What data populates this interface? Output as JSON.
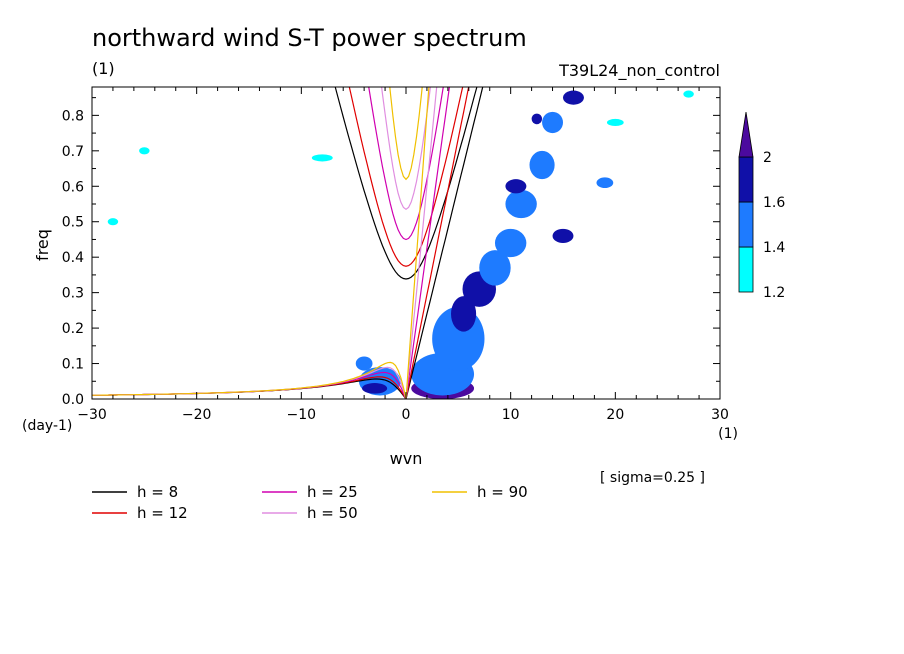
{
  "chart_data": {
    "type": "contour",
    "title": "northward wind S-T power spectrum",
    "units_label": "(1)",
    "run_label": "T39L24_non_control",
    "xlabel": "wvn",
    "ylabel": "freq",
    "x_unit": "(1)",
    "y_unit": "(day-1)",
    "xlim": [
      -30,
      30
    ],
    "ylim": [
      0,
      0.88
    ],
    "xticks": [
      -30,
      -20,
      -10,
      0,
      10,
      20,
      30
    ],
    "yticks": [
      0.0,
      0.1,
      0.2,
      0.3,
      0.4,
      0.5,
      0.6,
      0.7,
      0.8
    ],
    "xtick_labels": [
      "−30",
      "−20",
      "−10",
      "0",
      "10",
      "20",
      "30"
    ],
    "ytick_labels": [
      "0.0",
      "0.1",
      "0.2",
      "0.3",
      "0.4",
      "0.5",
      "0.6",
      "0.7",
      "0.8"
    ],
    "sigma_note": "[ sigma=0.25 ]",
    "colorbar": {
      "levels": [
        1.2,
        1.4,
        1.6,
        2
      ],
      "labels": [
        "1.2",
        "1.4",
        "1.6",
        "2"
      ],
      "colors": [
        "#00ffff",
        "#1e7bff",
        "#1010a8",
        "#4b0a9e"
      ]
    },
    "dispersion_curves": [
      {
        "label": "h =  8",
        "h": 8,
        "color": "#000000"
      },
      {
        "label": "h = 12",
        "h": 12,
        "color": "#e00000"
      },
      {
        "label": "h = 25",
        "h": 25,
        "color": "#d000b0"
      },
      {
        "label": "h = 50",
        "h": 50,
        "color": "#e08ee0"
      },
      {
        "label": "h = 90",
        "h": 90,
        "color": "#f0c000"
      }
    ],
    "blobs": [
      {
        "x": 3.5,
        "y": 0.03,
        "rx": 3.0,
        "ry": 0.03,
        "level": 3
      },
      {
        "x": 4.5,
        "y": 0.06,
        "rx": 1.5,
        "ry": 0.02,
        "level": 3
      },
      {
        "x": 3.5,
        "y": 0.07,
        "rx": 3.0,
        "ry": 0.06,
        "level": 1
      },
      {
        "x": 5.0,
        "y": 0.17,
        "rx": 2.5,
        "ry": 0.09,
        "level": 1
      },
      {
        "x": 5.5,
        "y": 0.24,
        "rx": 1.2,
        "ry": 0.05,
        "level": 2
      },
      {
        "x": 7.0,
        "y": 0.31,
        "rx": 1.6,
        "ry": 0.05,
        "level": 2
      },
      {
        "x": 8.5,
        "y": 0.37,
        "rx": 1.5,
        "ry": 0.05,
        "level": 1
      },
      {
        "x": 10.0,
        "y": 0.44,
        "rx": 1.5,
        "ry": 0.04,
        "level": 1
      },
      {
        "x": 11.0,
        "y": 0.55,
        "rx": 1.5,
        "ry": 0.04,
        "level": 1
      },
      {
        "x": 10.5,
        "y": 0.6,
        "rx": 1.0,
        "ry": 0.02,
        "level": 2
      },
      {
        "x": 13.0,
        "y": 0.66,
        "rx": 1.2,
        "ry": 0.04,
        "level": 1
      },
      {
        "x": 14.0,
        "y": 0.78,
        "rx": 1.0,
        "ry": 0.03,
        "level": 1
      },
      {
        "x": 12.5,
        "y": 0.79,
        "rx": 0.5,
        "ry": 0.015,
        "level": 2
      },
      {
        "x": 16.0,
        "y": 0.85,
        "rx": 1.0,
        "ry": 0.02,
        "level": 2
      },
      {
        "x": 19.0,
        "y": 0.61,
        "rx": 0.8,
        "ry": 0.015,
        "level": 1
      },
      {
        "x": 15.0,
        "y": 0.46,
        "rx": 1.0,
        "ry": 0.02,
        "level": 2
      },
      {
        "x": -2.5,
        "y": 0.05,
        "rx": 2.0,
        "ry": 0.04,
        "level": 1
      },
      {
        "x": -3.0,
        "y": 0.03,
        "rx": 1.2,
        "ry": 0.015,
        "level": 2
      },
      {
        "x": -4.0,
        "y": 0.1,
        "rx": 0.8,
        "ry": 0.02,
        "level": 1
      },
      {
        "x": -25.0,
        "y": 0.7,
        "rx": 0.5,
        "ry": 0.01,
        "level": 0
      },
      {
        "x": -8.0,
        "y": 0.68,
        "rx": 1.0,
        "ry": 0.01,
        "level": 0
      },
      {
        "x": 20.0,
        "y": 0.78,
        "rx": 0.8,
        "ry": 0.01,
        "level": 0
      },
      {
        "x": 27.0,
        "y": 0.86,
        "rx": 0.5,
        "ry": 0.01,
        "level": 0
      },
      {
        "x": -28.0,
        "y": 0.5,
        "rx": 0.5,
        "ry": 0.01,
        "level": 0
      }
    ]
  }
}
